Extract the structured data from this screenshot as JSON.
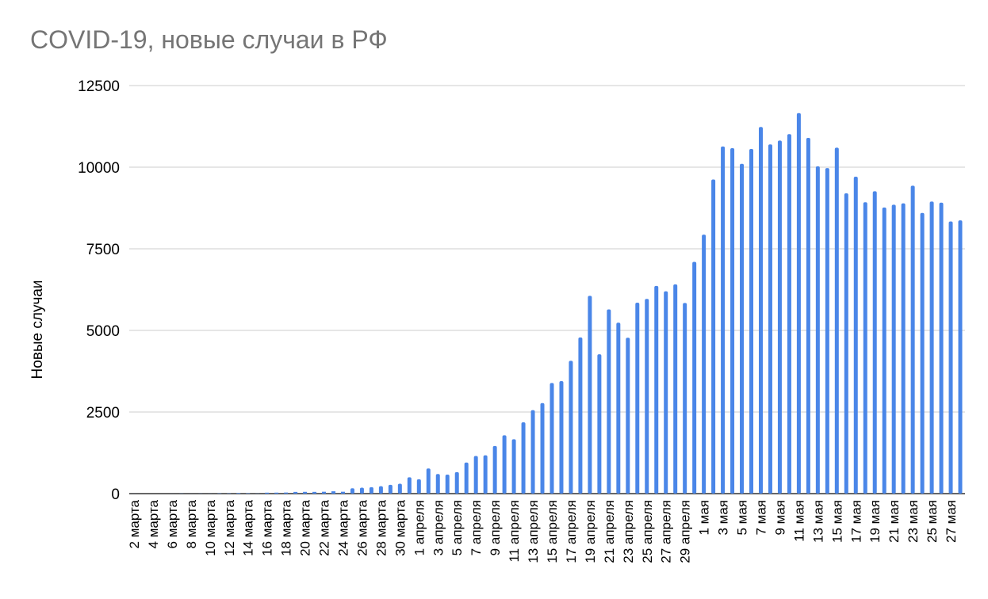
{
  "chart_data": {
    "type": "bar",
    "title": "COVID-19, новые случаи в РФ",
    "xlabel": "",
    "ylabel": "Новые случаи",
    "ylim": [
      0,
      12500
    ],
    "yticks": [
      0,
      2500,
      5000,
      7500,
      10000,
      12500
    ],
    "grid": true,
    "legend": "none",
    "bar_color": "#4a86e8",
    "categories": [
      "2 марта",
      "3 марта",
      "4 марта",
      "5 марта",
      "6 марта",
      "7 марта",
      "8 марта",
      "9 марта",
      "10 марта",
      "11 марта",
      "12 марта",
      "13 марта",
      "14 марта",
      "15 марта",
      "16 марта",
      "17 марта",
      "18 марта",
      "19 марта",
      "20 марта",
      "21 марта",
      "22 марта",
      "23 марта",
      "24 марта",
      "25 марта",
      "26 марта",
      "27 марта",
      "28 марта",
      "29 марта",
      "30 марта",
      "31 марта",
      "1 апреля",
      "2 апреля",
      "3 апреля",
      "4 апреля",
      "5 апреля",
      "6 апреля",
      "7 апреля",
      "8 апреля",
      "9 апреля",
      "10 апреля",
      "11 апреля",
      "12 апреля",
      "13 апреля",
      "14 апреля",
      "15 апреля",
      "16 апреля",
      "17 апреля",
      "18 апреля",
      "19 апреля",
      "20 апреля",
      "21 апреля",
      "22 апреля",
      "23 апреля",
      "24 апреля",
      "25 апреля",
      "26 апреля",
      "27 апреля",
      "28 апреля",
      "29 апреля",
      "30 апреля",
      "1 мая",
      "2 мая",
      "3 мая",
      "4 мая",
      "5 мая",
      "6 мая",
      "7 мая",
      "8 мая",
      "9 мая",
      "10 мая",
      "11 мая",
      "12 мая",
      "13 мая",
      "14 мая",
      "15 мая",
      "16 мая",
      "17 мая",
      "18 мая",
      "19 мая",
      "20 мая",
      "21 мая",
      "22 мая",
      "23 мая",
      "24 мая",
      "25 мая",
      "26 мая",
      "27 мая",
      "28 мая"
    ],
    "tick_labels_shown": [
      "2 марта",
      "4 марта",
      "6 марта",
      "8 марта",
      "10 марта",
      "12 марта",
      "14 марта",
      "16 марта",
      "18 марта",
      "20 марта",
      "22 марта",
      "24 марта",
      "26 марта",
      "28 марта",
      "30 марта",
      "1 апреля",
      "3 апреля",
      "5 апреля",
      "7 апреля",
      "9 апреля",
      "11 апреля",
      "13 апреля",
      "15 апреля",
      "17 апреля",
      "19 апреля",
      "21 апреля",
      "23 апреля",
      "25 апреля",
      "27 апреля",
      "29 апреля",
      "1 мая",
      "3 мая",
      "5 мая",
      "7 мая",
      "9 мая",
      "11 мая",
      "13 мая",
      "15 мая",
      "17 мая",
      "19 мая",
      "21 мая",
      "23 мая",
      "25 мая",
      "27 мая"
    ],
    "values": [
      1,
      0,
      0,
      0,
      1,
      4,
      1,
      3,
      2,
      8,
      8,
      16,
      11,
      4,
      29,
      30,
      33,
      52,
      54,
      53,
      57,
      71,
      57,
      163,
      182,
      196,
      228,
      270,
      302,
      500,
      440,
      771,
      601,
      582,
      658,
      954,
      1154,
      1175,
      1459,
      1786,
      1667,
      2186,
      2558,
      2774,
      3388,
      3448,
      4070,
      4785,
      6060,
      4268,
      5642,
      5236,
      4774,
      5849,
      5966,
      6361,
      6198,
      6411,
      5841,
      7099,
      7933,
      9623,
      10633,
      10581,
      10102,
      10559,
      11231,
      10699,
      10817,
      11012,
      11656,
      10899,
      10028,
      9974,
      10598,
      9200,
      9709,
      8926,
      9263,
      8764,
      8849,
      8894,
      9434,
      8599,
      8946,
      8915,
      8338,
      8371
    ]
  }
}
